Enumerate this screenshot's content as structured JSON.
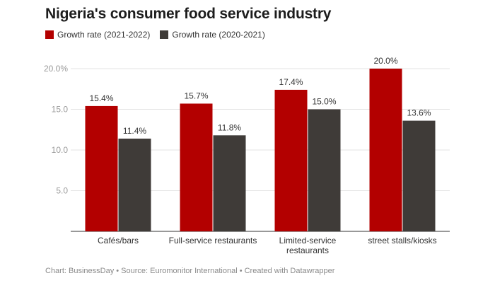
{
  "chart_data": {
    "type": "bar",
    "title": "Nigeria's consumer food service industry",
    "categories": [
      "Cafés/bars",
      "Full-service restaurants",
      "Limited-service restaurants",
      "street stalls/kiosks"
    ],
    "series": [
      {
        "name": "Growth rate (2021-2022)",
        "values": [
          15.4,
          15.7,
          17.4,
          20.0
        ],
        "color": "#b30000"
      },
      {
        "name": "Growth rate (2020-2021)",
        "values": [
          11.4,
          11.8,
          15.0,
          13.6
        ],
        "color": "#3f3b38"
      }
    ],
    "y_ticks": [
      "5.0",
      "10.0",
      "15.0",
      "20.0%"
    ],
    "y_tick_values": [
      5,
      10,
      15,
      20
    ],
    "ylim": [
      0,
      20
    ],
    "xlabel": "",
    "ylabel": "",
    "data_labels": [
      [
        "15.4%",
        "15.7%",
        "17.4%",
        "20.0%"
      ],
      [
        "11.4%",
        "11.8%",
        "15.0%",
        "13.6%"
      ]
    ],
    "legend_position": "top-left",
    "grid": true
  },
  "footer": "Chart: BusinessDay • Source: Euromonitor International • Created with Datawrapper"
}
